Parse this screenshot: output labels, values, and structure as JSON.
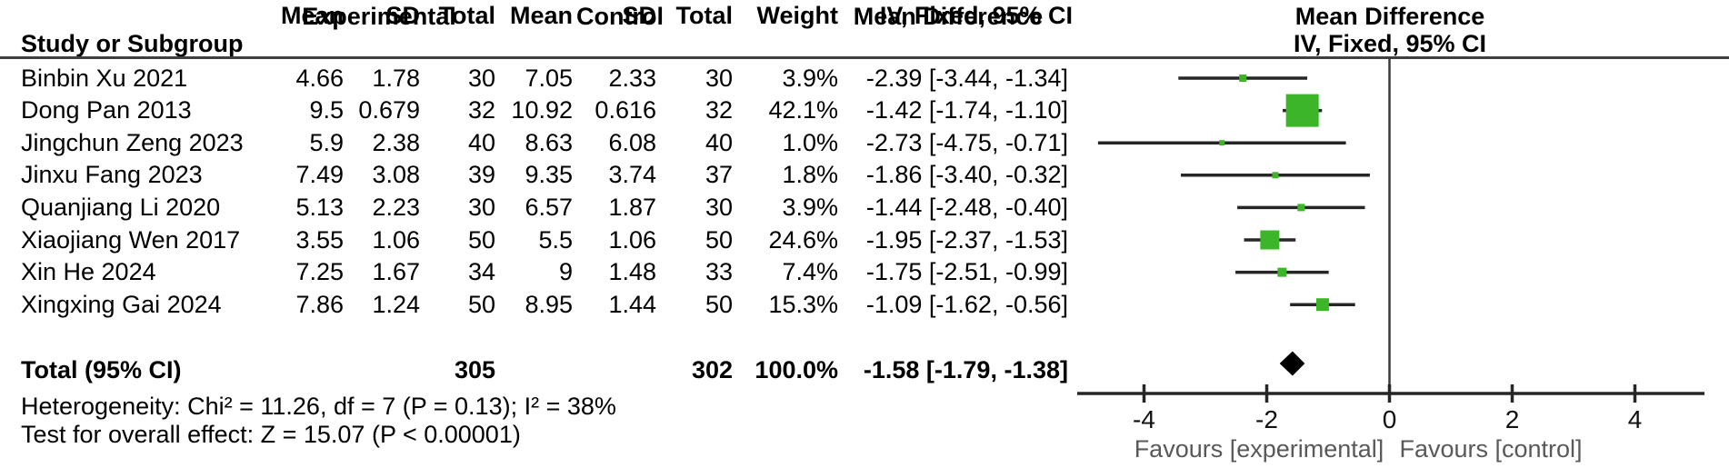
{
  "header": {
    "group_experimental": "Experimental",
    "group_control": "Control",
    "md_column_title": "Mean Difference",
    "md_plot_title": "Mean Difference",
    "study": "Study or Subgroup",
    "mean_exp": "Mean",
    "sd_exp": "SD",
    "total_exp": "Total",
    "mean_ctrl": "Mean",
    "sd_ctrl": "SD",
    "total_ctrl": "Total",
    "weight": "Weight",
    "iv_column": "IV, Fixed, 95% CI",
    "iv_plot": "IV, Fixed, 95% CI"
  },
  "chart_data": {
    "type": "scatter",
    "subtype": "forest-plot-fixed-effect",
    "effect_measure": "Mean Difference, IV, Fixed, 95% CI",
    "studies": [
      {
        "name": "Binbin Xu 2021",
        "e_mean": "4.66",
        "e_sd": "1.78",
        "e_total": "30",
        "c_mean": "7.05",
        "c_sd": "2.33",
        "c_total": "30",
        "weight": "3.9%",
        "ci_text": "-2.39 [-3.44, -1.34]",
        "md": -2.39,
        "lo": -3.44,
        "hi": -1.34,
        "marker_size": 8
      },
      {
        "name": "Dong Pan 2013",
        "e_mean": "9.5",
        "e_sd": "0.679",
        "e_total": "32",
        "c_mean": "10.92",
        "c_sd": "0.616",
        "c_total": "32",
        "weight": "42.1%",
        "ci_text": "-1.42 [-1.74, -1.10]",
        "md": -1.42,
        "lo": -1.74,
        "hi": -1.1,
        "marker_size": 36
      },
      {
        "name": "Jingchun Zeng 2023",
        "e_mean": "5.9",
        "e_sd": "2.38",
        "e_total": "40",
        "c_mean": "8.63",
        "c_sd": "6.08",
        "c_total": "40",
        "weight": "1.0%",
        "ci_text": "-2.73 [-4.75, -0.71]",
        "md": -2.73,
        "lo": -4.75,
        "hi": -0.71,
        "marker_size": 6
      },
      {
        "name": "Jinxu Fang 2023",
        "e_mean": "7.49",
        "e_sd": "3.08",
        "e_total": "39",
        "c_mean": "9.35",
        "c_sd": "3.74",
        "c_total": "37",
        "weight": "1.8%",
        "ci_text": "-1.86 [-3.40, -0.32]",
        "md": -1.86,
        "lo": -3.4,
        "hi": -0.32,
        "marker_size": 7
      },
      {
        "name": "Quanjiang Li 2020",
        "e_mean": "5.13",
        "e_sd": "2.23",
        "e_total": "30",
        "c_mean": "6.57",
        "c_sd": "1.87",
        "c_total": "30",
        "weight": "3.9%",
        "ci_text": "-1.44 [-2.48, -0.40]",
        "md": -1.44,
        "lo": -2.48,
        "hi": -0.4,
        "marker_size": 8
      },
      {
        "name": "Xiaojiang Wen 2017",
        "e_mean": "3.55",
        "e_sd": "1.06",
        "e_total": "50",
        "c_mean": "5.5",
        "c_sd": "1.06",
        "c_total": "50",
        "weight": "24.6%",
        "ci_text": "-1.95 [-2.37, -1.53]",
        "md": -1.95,
        "lo": -2.37,
        "hi": -1.53,
        "marker_size": 21
      },
      {
        "name": "Xin He 2024",
        "e_mean": "7.25",
        "e_sd": "1.67",
        "e_total": "34",
        "c_mean": "9",
        "c_sd": "1.48",
        "c_total": "33",
        "weight": "7.4%",
        "ci_text": "-1.75 [-2.51, -0.99]",
        "md": -1.75,
        "lo": -2.51,
        "hi": -0.99,
        "marker_size": 10
      },
      {
        "name": "Xingxing Gai 2024",
        "e_mean": "7.86",
        "e_sd": "1.24",
        "e_total": "50",
        "c_mean": "8.95",
        "c_sd": "1.44",
        "c_total": "50",
        "weight": "15.3%",
        "ci_text": "-1.09 [-1.62, -0.56]",
        "md": -1.09,
        "lo": -1.62,
        "hi": -0.56,
        "marker_size": 14
      }
    ],
    "total": {
      "label": "Total (95% CI)",
      "e_total": "305",
      "c_total": "302",
      "weight": "100.0%",
      "ci_text": "-1.58 [-1.79, -1.38]",
      "md": -1.58,
      "lo": -1.79,
      "hi": -1.38
    },
    "heterogeneity": "Heterogeneity: Chi² = 11.26, df = 7 (P = 0.13); I² = 38%",
    "overall_effect": "Test for overall effect: Z = 15.07 (P < 0.00001)",
    "x_axis": {
      "ticks": [
        -4,
        -2,
        0,
        2,
        4
      ],
      "range": [
        -5.1,
        5.1
      ],
      "favours_left": "Favours [experimental]",
      "favours_right": "Favours [control]"
    },
    "legend_position": "none",
    "grid": false,
    "colors": {
      "marker": "#3db528",
      "diamond": "#000000",
      "line": "#262626",
      "favours_text": "#595959",
      "rule": "#3f3f3f"
    }
  }
}
